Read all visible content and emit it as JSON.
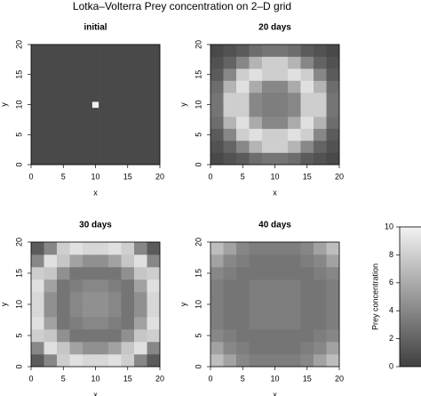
{
  "title": "Lotka–Volterra Prey concentration on 2–D grid",
  "chart_data": [
    {
      "type": "heatmap",
      "title": "initial",
      "xlabel": "x",
      "ylabel": "y",
      "x": [
        0,
        9.5,
        10.5,
        20
      ],
      "y": [
        0,
        9.5,
        10.5,
        20
      ],
      "values": [
        [
          0.5,
          0.5,
          0.5
        ],
        [
          0.5,
          10,
          0.5
        ],
        [
          0.5,
          0.5,
          0.5
        ]
      ],
      "xlim": [
        0,
        20
      ],
      "ylim": [
        0,
        20
      ],
      "xticks": [
        0,
        5,
        10,
        15,
        20
      ],
      "yticks": [
        0,
        5,
        10,
        15,
        20
      ]
    },
    {
      "type": "heatmap",
      "title": "20 days",
      "xlabel": "x",
      "ylabel": "y",
      "x": [
        0,
        2,
        4,
        6,
        8,
        10,
        12,
        14,
        16,
        18,
        20
      ],
      "y": [
        0,
        2,
        4,
        6,
        8,
        10,
        12,
        14,
        16,
        18,
        20
      ],
      "values": [
        [
          0.5,
          1,
          1.5,
          2.5,
          3,
          3,
          2.5,
          1.5,
          1,
          0.5
        ],
        [
          1,
          2,
          4,
          6.5,
          8,
          8,
          6.5,
          4,
          2,
          1
        ],
        [
          1.5,
          4,
          8,
          9,
          8,
          8,
          9,
          8,
          4,
          1.5
        ],
        [
          2.5,
          6.5,
          9,
          6,
          4,
          4,
          6,
          9,
          6.5,
          2.5
        ],
        [
          3,
          8,
          8,
          4,
          3.5,
          3.5,
          4,
          8,
          8,
          3
        ],
        [
          3,
          8,
          8,
          4,
          3.5,
          3.5,
          4,
          8,
          8,
          3
        ],
        [
          2.5,
          6.5,
          9,
          6,
          4,
          4,
          6,
          9,
          6.5,
          2.5
        ],
        [
          1.5,
          4,
          8,
          9,
          8,
          8,
          9,
          8,
          4,
          1.5
        ],
        [
          1,
          2,
          4,
          6.5,
          8,
          8,
          6.5,
          4,
          2,
          1
        ],
        [
          0.5,
          1,
          1.5,
          2.5,
          3,
          3,
          2.5,
          1.5,
          1,
          0.5
        ]
      ],
      "xlim": [
        0,
        20
      ],
      "ylim": [
        0,
        20
      ],
      "xticks": [
        0,
        5,
        10,
        15,
        20
      ],
      "yticks": [
        0,
        5,
        10,
        15,
        20
      ]
    },
    {
      "type": "heatmap",
      "title": "30 days",
      "xlabel": "x",
      "ylabel": "y",
      "x": [
        0,
        2,
        4,
        6,
        8,
        10,
        12,
        14,
        16,
        18,
        20
      ],
      "y": [
        0,
        2,
        4,
        6,
        8,
        10,
        12,
        14,
        16,
        18,
        20
      ],
      "values": [
        [
          1.5,
          4,
          8,
          9,
          8.5,
          8.5,
          9,
          8,
          4,
          1.5
        ],
        [
          4,
          9,
          7.5,
          5.5,
          4.5,
          4.5,
          5.5,
          7.5,
          9,
          4
        ],
        [
          8,
          7.5,
          4.5,
          3,
          3,
          3,
          3,
          4.5,
          7.5,
          8
        ],
        [
          9,
          5.5,
          3,
          3.5,
          4,
          4,
          3.5,
          3,
          5.5,
          9
        ],
        [
          8.5,
          4.5,
          3,
          4,
          4.5,
          4.5,
          4,
          3,
          4.5,
          8.5
        ],
        [
          8.5,
          4.5,
          3,
          4,
          4.5,
          4.5,
          4,
          3,
          4.5,
          8.5
        ],
        [
          9,
          5.5,
          3,
          3.5,
          4,
          4,
          3.5,
          3,
          5.5,
          9
        ],
        [
          8,
          7.5,
          4.5,
          3,
          3,
          3,
          3,
          4.5,
          7.5,
          8
        ],
        [
          4,
          9,
          7.5,
          5.5,
          4.5,
          4.5,
          5.5,
          7.5,
          9,
          4
        ],
        [
          1.5,
          4,
          8,
          9,
          8.5,
          8.5,
          9,
          8,
          4,
          1.5
        ]
      ],
      "xlim": [
        0,
        20
      ],
      "ylim": [
        0,
        20
      ],
      "xticks": [
        0,
        5,
        10,
        15,
        20
      ],
      "yticks": [
        0,
        5,
        10,
        15,
        20
      ]
    },
    {
      "type": "heatmap",
      "title": "40 days",
      "xlabel": "x",
      "ylabel": "y",
      "x": [
        0,
        2,
        4,
        6,
        8,
        10,
        12,
        14,
        16,
        18,
        20
      ],
      "y": [
        0,
        2,
        4,
        6,
        8,
        10,
        12,
        14,
        16,
        18,
        20
      ],
      "values": [
        [
          7,
          5.5,
          4,
          3.5,
          3.5,
          3.5,
          3.5,
          4,
          5.5,
          7
        ],
        [
          5.5,
          4,
          3.5,
          3,
          3,
          3,
          3,
          3.5,
          4,
          5.5
        ],
        [
          4,
          3.5,
          3,
          3,
          3,
          3,
          3,
          3,
          3.5,
          4
        ],
        [
          3.5,
          3,
          3,
          3.5,
          3.5,
          3.5,
          3.5,
          3,
          3,
          3.5
        ],
        [
          3.5,
          3,
          3,
          3.5,
          3.5,
          3.5,
          3.5,
          3,
          3,
          3.5
        ],
        [
          3.5,
          3,
          3,
          3.5,
          3.5,
          3.5,
          3.5,
          3,
          3,
          3.5
        ],
        [
          3.5,
          3,
          3,
          3.5,
          3.5,
          3.5,
          3.5,
          3,
          3,
          3.5
        ],
        [
          4,
          3.5,
          3,
          3,
          3,
          3,
          3,
          3,
          3.5,
          4
        ],
        [
          5.5,
          4,
          3.5,
          3,
          3,
          3,
          3,
          3.5,
          4,
          5.5
        ],
        [
          7,
          5.5,
          4,
          3.5,
          3.5,
          3.5,
          3.5,
          4,
          5.5,
          7
        ]
      ],
      "xlim": [
        0,
        20
      ],
      "ylim": [
        0,
        20
      ],
      "xticks": [
        0,
        5,
        10,
        15,
        20
      ],
      "yticks": [
        0,
        5,
        10,
        15,
        20
      ]
    },
    {
      "type": "colorbar",
      "ylabel": "Prey concentration",
      "ylim": [
        0,
        10
      ],
      "yticks": [
        0,
        2,
        4,
        6,
        8,
        10
      ],
      "colors": [
        "#404040",
        "#f2f2f2"
      ]
    }
  ]
}
